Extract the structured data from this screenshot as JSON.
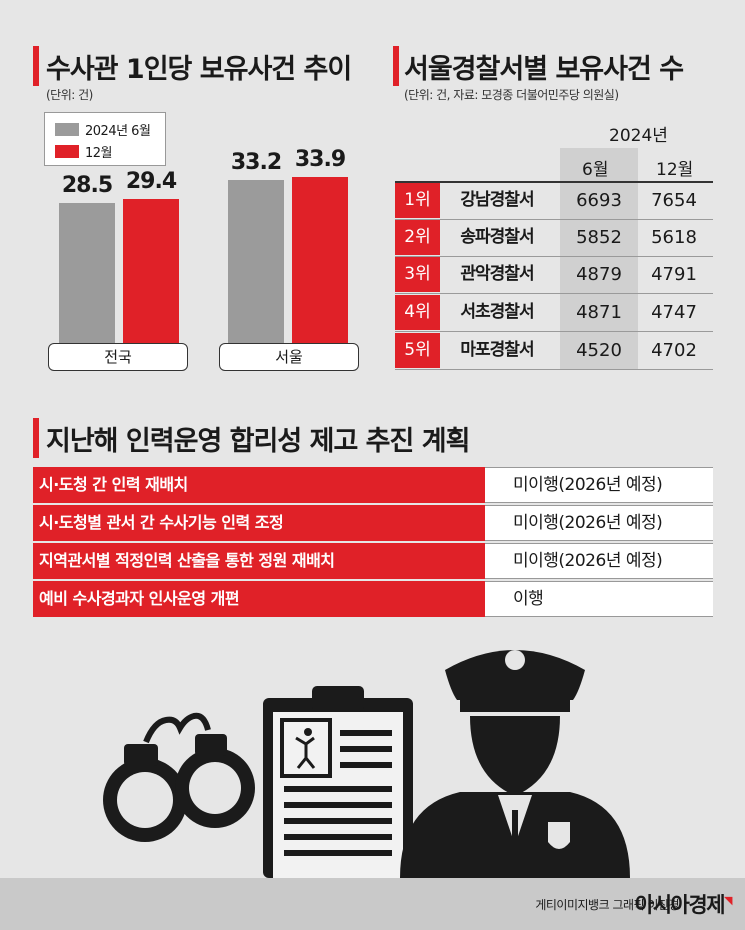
{
  "left_section": {
    "title": "수사관 1인당 보유사건 추이",
    "unit": "(단위: 건)"
  },
  "right_section": {
    "title": "서울경찰서별 보유사건 수",
    "unit": "(단위: 건, 자료: 모경종 더불어민주당 의원실)"
  },
  "plans_section": {
    "title": "지난해 인력운영 합리성 제고 추진 계획"
  },
  "colors": {
    "accent": "#e02128",
    "series_2024_06": "#9b9b9b",
    "series_12": "#e02128",
    "background": "#e6e6e6"
  },
  "chart_data": [
    {
      "type": "bar",
      "title": "수사관 1인당 보유사건 추이",
      "categories": [
        "전국",
        "서울"
      ],
      "series": [
        {
          "name": "2024년 6월",
          "values": [
            28.5,
            33.2
          ]
        },
        {
          "name": "12월",
          "values": [
            29.4,
            33.9
          ]
        }
      ],
      "ylim": [
        0,
        40
      ],
      "grid": false,
      "legend": "top-left"
    },
    {
      "type": "table",
      "title": "서울경찰서별 보유사건 수",
      "year_label": "2024년",
      "columns": [
        "6월",
        "12월"
      ],
      "rows": [
        {
          "rank": "1위",
          "station": "강남경찰서",
          "values": [
            "6693",
            "7654"
          ]
        },
        {
          "rank": "2위",
          "station": "송파경찰서",
          "values": [
            "5852",
            "5618"
          ]
        },
        {
          "rank": "3위",
          "station": "관악경찰서",
          "values": [
            "4879",
            "4791"
          ]
        },
        {
          "rank": "4위",
          "station": "서초경찰서",
          "values": [
            "4871",
            "4747"
          ]
        },
        {
          "rank": "5위",
          "station": "마포경찰서",
          "values": [
            "4520",
            "4702"
          ]
        }
      ]
    }
  ],
  "plans": [
    {
      "task": "시·도청 간 인력 재배치",
      "status": "미이행(2026년 예정)"
    },
    {
      "task": "시·도청별 관서 간 수사기능 인력 조정",
      "status": "미이행(2026년 예정)"
    },
    {
      "task": "지역관서별 적정인력 산출을 통한 정원 재배치",
      "status": "미이행(2026년 예정)"
    },
    {
      "task": "예비 수사경과자 인사운영 개편",
      "status": "이행"
    }
  ],
  "illustration": {
    "icons": [
      "handcuffs-icon",
      "clipboard-icon",
      "police-officer-icon"
    ]
  },
  "footer": {
    "credit": "게티이미지뱅크  그래픽 이진경",
    "brand": "아시아경제"
  }
}
